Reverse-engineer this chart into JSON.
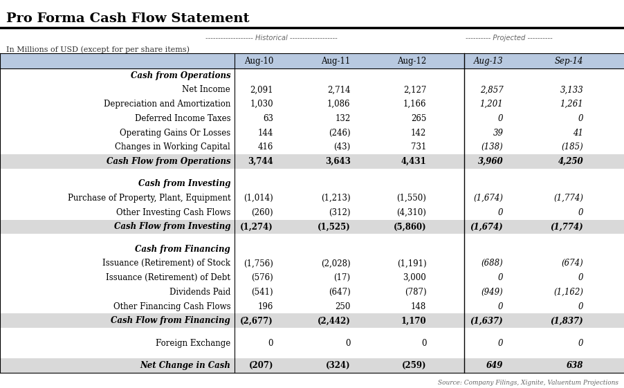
{
  "title": "Pro Forma Cash Flow Statement",
  "subtitle_left": "In Millions of USD (except for per share items)",
  "header_historical": "------------------- Historical -------------------",
  "header_projected": "---------- Projected ----------",
  "columns": [
    "Aug-10",
    "Aug-11",
    "Aug-12",
    "Aug-13",
    "Sep-14"
  ],
  "source_note": "Source: Company Filings, Xignite, Valuentum Projections",
  "rows": [
    {
      "label": "Cash from Operations",
      "values": [
        "",
        "",
        "",
        "",
        ""
      ],
      "type": "section_header"
    },
    {
      "label": "Net Income",
      "values": [
        "2,091",
        "2,714",
        "2,127",
        "2,857",
        "3,133"
      ],
      "type": "normal"
    },
    {
      "label": "Depreciation and Amortization",
      "values": [
        "1,030",
        "1,086",
        "1,166",
        "1,201",
        "1,261"
      ],
      "type": "normal"
    },
    {
      "label": "Deferred Income Taxes",
      "values": [
        "63",
        "132",
        "265",
        "0",
        "0"
      ],
      "type": "normal"
    },
    {
      "label": "Operating Gains Or Losses",
      "values": [
        "144",
        "(246)",
        "142",
        "39",
        "41"
      ],
      "type": "normal"
    },
    {
      "label": "Changes in Working Capital",
      "values": [
        "416",
        "(43)",
        "731",
        "(138)",
        "(185)"
      ],
      "type": "normal"
    },
    {
      "label": "Cash Flow from Operations",
      "values": [
        "3,744",
        "3,643",
        "4,431",
        "3,960",
        "4,250"
      ],
      "type": "subtotal"
    },
    {
      "label": "",
      "values": [
        "",
        "",
        "",
        "",
        ""
      ],
      "type": "spacer"
    },
    {
      "label": "Cash from Investing",
      "values": [
        "",
        "",
        "",
        "",
        ""
      ],
      "type": "section_header"
    },
    {
      "label": "Purchase of Property, Plant, Equipment",
      "values": [
        "(1,014)",
        "(1,213)",
        "(1,550)",
        "(1,674)",
        "(1,774)"
      ],
      "type": "normal"
    },
    {
      "label": "Other Investing Cash Flows",
      "values": [
        "(260)",
        "(312)",
        "(4,310)",
        "0",
        "0"
      ],
      "type": "normal"
    },
    {
      "label": "Cash Flow from Investing",
      "values": [
        "(1,274)",
        "(1,525)",
        "(5,860)",
        "(1,674)",
        "(1,774)"
      ],
      "type": "subtotal"
    },
    {
      "label": "",
      "values": [
        "",
        "",
        "",
        "",
        ""
      ],
      "type": "spacer"
    },
    {
      "label": "Cash from Financing",
      "values": [
        "",
        "",
        "",
        "",
        ""
      ],
      "type": "section_header"
    },
    {
      "label": "Issuance (Retirement) of Stock",
      "values": [
        "(1,756)",
        "(2,028)",
        "(1,191)",
        "(688)",
        "(674)"
      ],
      "type": "normal"
    },
    {
      "label": "Issuance (Retirement) of Debt",
      "values": [
        "(576)",
        "(17)",
        "3,000",
        "0",
        "0"
      ],
      "type": "normal"
    },
    {
      "label": "Dividends Paid",
      "values": [
        "(541)",
        "(647)",
        "(787)",
        "(949)",
        "(1,162)"
      ],
      "type": "normal"
    },
    {
      "label": "Other Financing Cash Flows",
      "values": [
        "196",
        "250",
        "148",
        "0",
        "0"
      ],
      "type": "normal"
    },
    {
      "label": "Cash Flow from Financing",
      "values": [
        "(2,677)",
        "(2,442)",
        "1,170",
        "(1,637)",
        "(1,837)"
      ],
      "type": "subtotal"
    },
    {
      "label": "",
      "values": [
        "",
        "",
        "",
        "",
        ""
      ],
      "type": "spacer"
    },
    {
      "label": "Foreign Exchange",
      "values": [
        "0",
        "0",
        "0",
        "0",
        "0"
      ],
      "type": "normal"
    },
    {
      "label": "",
      "values": [
        "",
        "",
        "",
        "",
        ""
      ],
      "type": "spacer"
    },
    {
      "label": "Net Change in Cash",
      "values": [
        "(207)",
        "(324)",
        "(259)",
        "649",
        "638"
      ],
      "type": "subtotal"
    }
  ],
  "bg_color": "#FFFFFF",
  "header_bg": "#B8C9E0",
  "subtotal_bg": "#D9D9D9",
  "title_color": "#000000",
  "normal_text_color": "#000000",
  "title_fontsize": 14,
  "header_fontsize": 8.5,
  "data_fontsize": 8.5,
  "label_fontsize": 8.5
}
